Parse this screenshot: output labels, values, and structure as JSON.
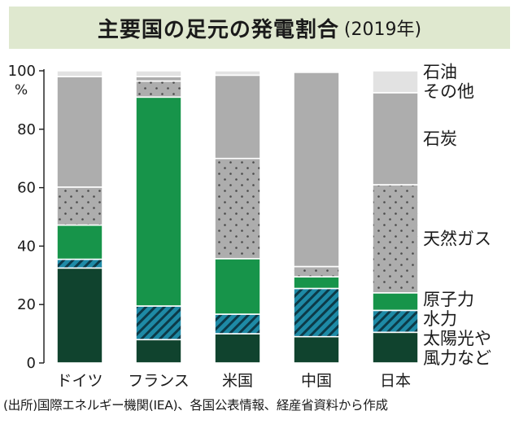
{
  "title": "主要国の足元の発電割合",
  "subtitle": "(2019年)",
  "source": "(出所)国際エネルギー機関(IEA)、各国公表情報、経産省資料から作成",
  "chart_data": {
    "type": "bar",
    "stacked": true,
    "y_unit": "%",
    "ylim": [
      0,
      100
    ],
    "yticks": [
      "0",
      "20",
      "40",
      "60",
      "80",
      "100"
    ],
    "grid": false,
    "legend_position": "right",
    "categories": [
      "ドイツ",
      "フランス",
      "米国",
      "中国",
      "日本"
    ],
    "series": [
      {
        "name": "太陽光や風力など",
        "color": "#10432e",
        "pattern": "solid",
        "values": [
          32.5,
          8,
          10,
          9,
          10.5
        ]
      },
      {
        "name": "水力",
        "color": "#1e8aa6",
        "pattern": "hatch",
        "values": [
          3,
          11.5,
          6.7,
          16.5,
          7.5
        ]
      },
      {
        "name": "原子力",
        "color": "#17944a",
        "pattern": "solid",
        "values": [
          11.7,
          71.5,
          19,
          4,
          6
        ]
      },
      {
        "name": "天然ガス",
        "color": "#adadad",
        "pattern": "dots",
        "values": [
          13,
          5.5,
          34.3,
          3.5,
          37
        ]
      },
      {
        "name": "石炭",
        "color": "#adadad",
        "pattern": "solid",
        "values": [
          37.8,
          1.5,
          28.5,
          66.5,
          31.5
        ]
      },
      {
        "name": "石油その他",
        "color": "#e2e2e2",
        "pattern": "solid",
        "values": [
          2,
          2,
          1.5,
          0.5,
          7.5
        ]
      }
    ],
    "legend_labels": [
      {
        "series": 5,
        "lines": [
          "石油",
          "その他"
        ]
      },
      {
        "series": 4,
        "lines": [
          "石炭"
        ]
      },
      {
        "series": 3,
        "lines": [
          "天然ガス"
        ]
      },
      {
        "series": 2,
        "lines": [
          "原子力"
        ]
      },
      {
        "series": 1,
        "lines": [
          "水力"
        ]
      },
      {
        "series": 0,
        "lines": [
          "太陽光や",
          "風力など"
        ]
      }
    ]
  }
}
